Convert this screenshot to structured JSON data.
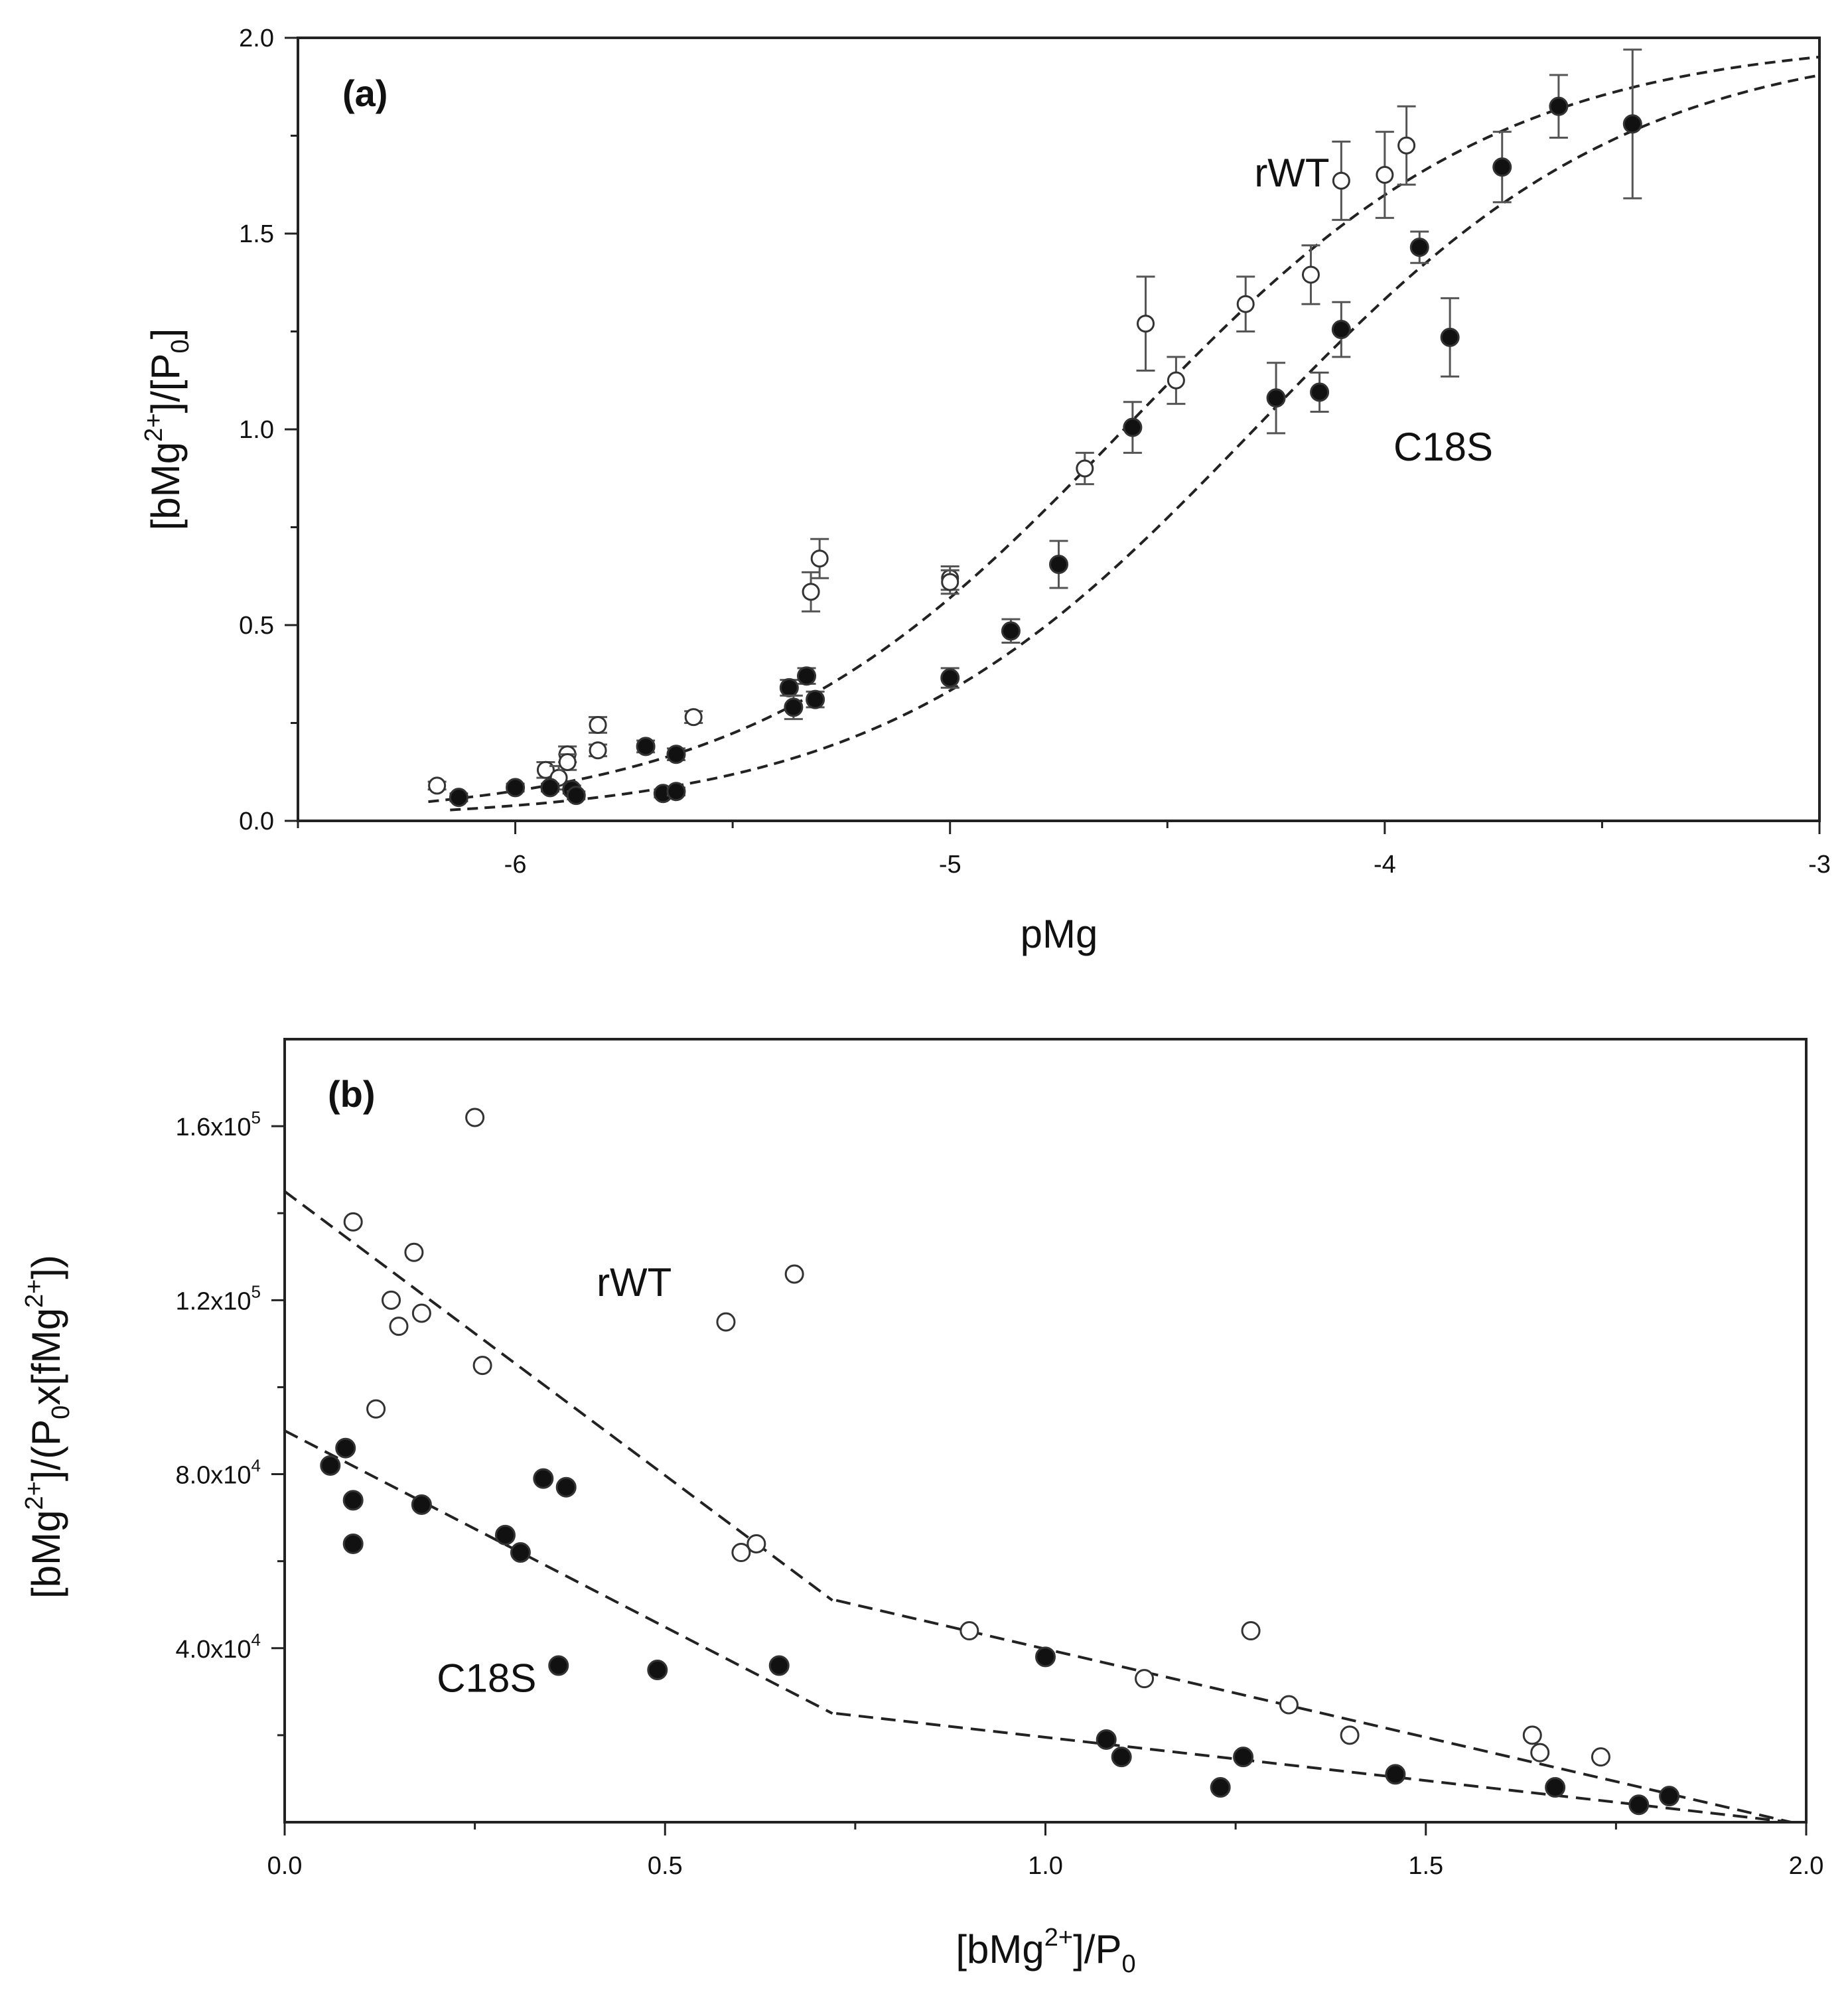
{
  "chart_data": [
    {
      "panel": "a",
      "type": "scatter",
      "panel_label": "(a)",
      "xlabel": "pMg",
      "ylabel": {
        "base": "[bMg",
        "sup": "2+",
        "mid": "]/[P",
        "sub": "0",
        "end": "]"
      },
      "xlim": [
        -6.5,
        -3
      ],
      "ylim": [
        0,
        2
      ],
      "xticks": [
        -6,
        -5,
        -4,
        -3
      ],
      "yticks": [
        0.0,
        0.5,
        1.0,
        1.5,
        2.0
      ],
      "ytick_labels": [
        "0.0",
        "0.5",
        "1.0",
        "1.5",
        "2.0"
      ],
      "series": [
        {
          "name": "rWT",
          "marker": "open-circle",
          "label_at": [
            -4.3,
            1.62
          ],
          "points": [
            [
              -6.18,
              0.09,
              0.01
            ],
            [
              -5.93,
              0.13,
              0.02
            ],
            [
              -5.9,
              0.11,
              0.03
            ],
            [
              -5.88,
              0.17,
              0.02
            ],
            [
              -5.88,
              0.15,
              0.02
            ],
            [
              -5.81,
              0.245,
              0.02
            ],
            [
              -5.81,
              0.18,
              0.015
            ],
            [
              -5.59,
              0.265,
              0.015
            ],
            [
              -5.32,
              0.585,
              0.05
            ],
            [
              -5.3,
              0.67,
              0.05
            ],
            [
              -5.0,
              0.62,
              0.03
            ],
            [
              -5.0,
              0.61,
              0.03
            ],
            [
              -4.69,
              0.9,
              0.04
            ],
            [
              -4.55,
              1.27,
              0.12
            ],
            [
              -4.48,
              1.125,
              0.06
            ],
            [
              -4.32,
              1.32,
              0.07
            ],
            [
              -4.17,
              1.395,
              0.075
            ],
            [
              -4.1,
              1.635,
              0.1
            ],
            [
              -4.0,
              1.65,
              0.11
            ],
            [
              -3.95,
              1.725,
              0.1
            ]
          ],
          "fit": {
            "max": 2,
            "pK": 4.6,
            "n": 1
          }
        },
        {
          "name": "C18S",
          "marker": "filled-circle",
          "label_at": [
            -3.98,
            0.92
          ],
          "points": [
            [
              -6.13,
              0.06,
              0.01
            ],
            [
              -6.0,
              0.085,
              0.01
            ],
            [
              -5.92,
              0.085,
              0.01
            ],
            [
              -5.87,
              0.08,
              0.01
            ],
            [
              -5.86,
              0.065,
              0.01
            ],
            [
              -5.7,
              0.19,
              0.015
            ],
            [
              -5.66,
              0.07,
              0.01
            ],
            [
              -5.63,
              0.17,
              0.015
            ],
            [
              -5.63,
              0.075,
              0.01
            ],
            [
              -5.37,
              0.34,
              0.02
            ],
            [
              -5.36,
              0.29,
              0.03
            ],
            [
              -5.33,
              0.37,
              0.02
            ],
            [
              -5.31,
              0.31,
              0.02
            ],
            [
              -5.0,
              0.365,
              0.025
            ],
            [
              -4.86,
              0.485,
              0.03
            ],
            [
              -4.75,
              0.655,
              0.06
            ],
            [
              -4.58,
              1.005,
              0.065
            ],
            [
              -4.25,
              1.08,
              0.09
            ],
            [
              -4.15,
              1.095,
              0.05
            ],
            [
              -4.1,
              1.255,
              0.07
            ],
            [
              -3.92,
              1.465,
              0.04
            ],
            [
              -3.85,
              1.235,
              0.1
            ],
            [
              -3.73,
              1.67,
              0.09
            ],
            [
              -3.6,
              1.825,
              0.08
            ],
            [
              -3.43,
              1.78,
              0.19
            ]
          ],
          "fit": {
            "max": 2,
            "pK": 4.3,
            "n": 1
          }
        }
      ]
    },
    {
      "panel": "b",
      "type": "scatter",
      "panel_label": "(b)",
      "xlabel": {
        "base": "[bMg",
        "sup": "2+",
        "mid": "]/P",
        "sub": "0",
        "end": ""
      },
      "ylabel": {
        "p1": "[bMg",
        "s1": "2+",
        "p2": "]/(P",
        "b1": "0",
        "p3": "x[fMg",
        "s2": "2+",
        "p4": "])"
      },
      "xlim": [
        0,
        2
      ],
      "ylim": [
        0,
        180000
      ],
      "xticks": [
        0.0,
        0.5,
        1.0,
        1.5,
        2.0
      ],
      "xtick_labels": [
        "0.0",
        "0.5",
        "1.0",
        "1.5",
        "2.0"
      ],
      "yticks": [
        40000,
        80000,
        120000,
        160000
      ],
      "ytick_labels": [
        {
          "mant": "4.0x10",
          "exp": "4"
        },
        {
          "mant": "8.0x10",
          "exp": "4"
        },
        {
          "mant": "1.2x10",
          "exp": "5"
        },
        {
          "mant": "1.6x10",
          "exp": "5"
        }
      ],
      "series": [
        {
          "name": "rWT",
          "marker": "open-circle",
          "label_at": [
            0.41,
            121000
          ],
          "points": [
            [
              0.09,
              138000
            ],
            [
              0.12,
              95000
            ],
            [
              0.14,
              120000
            ],
            [
              0.15,
              114000
            ],
            [
              0.17,
              131000
            ],
            [
              0.18,
              117000
            ],
            [
              0.25,
              162000
            ],
            [
              0.26,
              105000
            ],
            [
              0.58,
              115000
            ],
            [
              0.6,
              62000
            ],
            [
              0.62,
              64000
            ],
            [
              0.67,
              126000
            ],
            [
              0.9,
              44000
            ],
            [
              1.13,
              33000
            ],
            [
              1.27,
              44000
            ],
            [
              1.32,
              27000
            ],
            [
              1.4,
              20000
            ],
            [
              1.64,
              20000
            ],
            [
              1.65,
              16000
            ],
            [
              1.73,
              15000
            ]
          ],
          "fit": [
            [
              0,
              145000
            ],
            [
              0.72,
              51000
            ],
            [
              1.98,
              0
            ]
          ]
        },
        {
          "name": "C18S",
          "marker": "filled-circle",
          "label_at": [
            0.2,
            30000
          ],
          "points": [
            [
              0.06,
              82000
            ],
            [
              0.08,
              86000
            ],
            [
              0.09,
              74000
            ],
            [
              0.09,
              64000
            ],
            [
              0.18,
              73000
            ],
            [
              0.29,
              66000
            ],
            [
              0.31,
              62000
            ],
            [
              0.34,
              79000
            ],
            [
              0.36,
              36000
            ],
            [
              0.37,
              77000
            ],
            [
              0.49,
              35000
            ],
            [
              0.65,
              36000
            ],
            [
              1.0,
              38000
            ],
            [
              1.08,
              19000
            ],
            [
              1.1,
              15000
            ],
            [
              1.23,
              8000
            ],
            [
              1.26,
              15000
            ],
            [
              1.46,
              11000
            ],
            [
              1.67,
              8000
            ],
            [
              1.78,
              4000
            ],
            [
              1.82,
              6000
            ]
          ],
          "fit": [
            [
              0,
              90000
            ],
            [
              0.72,
              25000
            ],
            [
              1.98,
              0
            ]
          ]
        }
      ]
    }
  ]
}
